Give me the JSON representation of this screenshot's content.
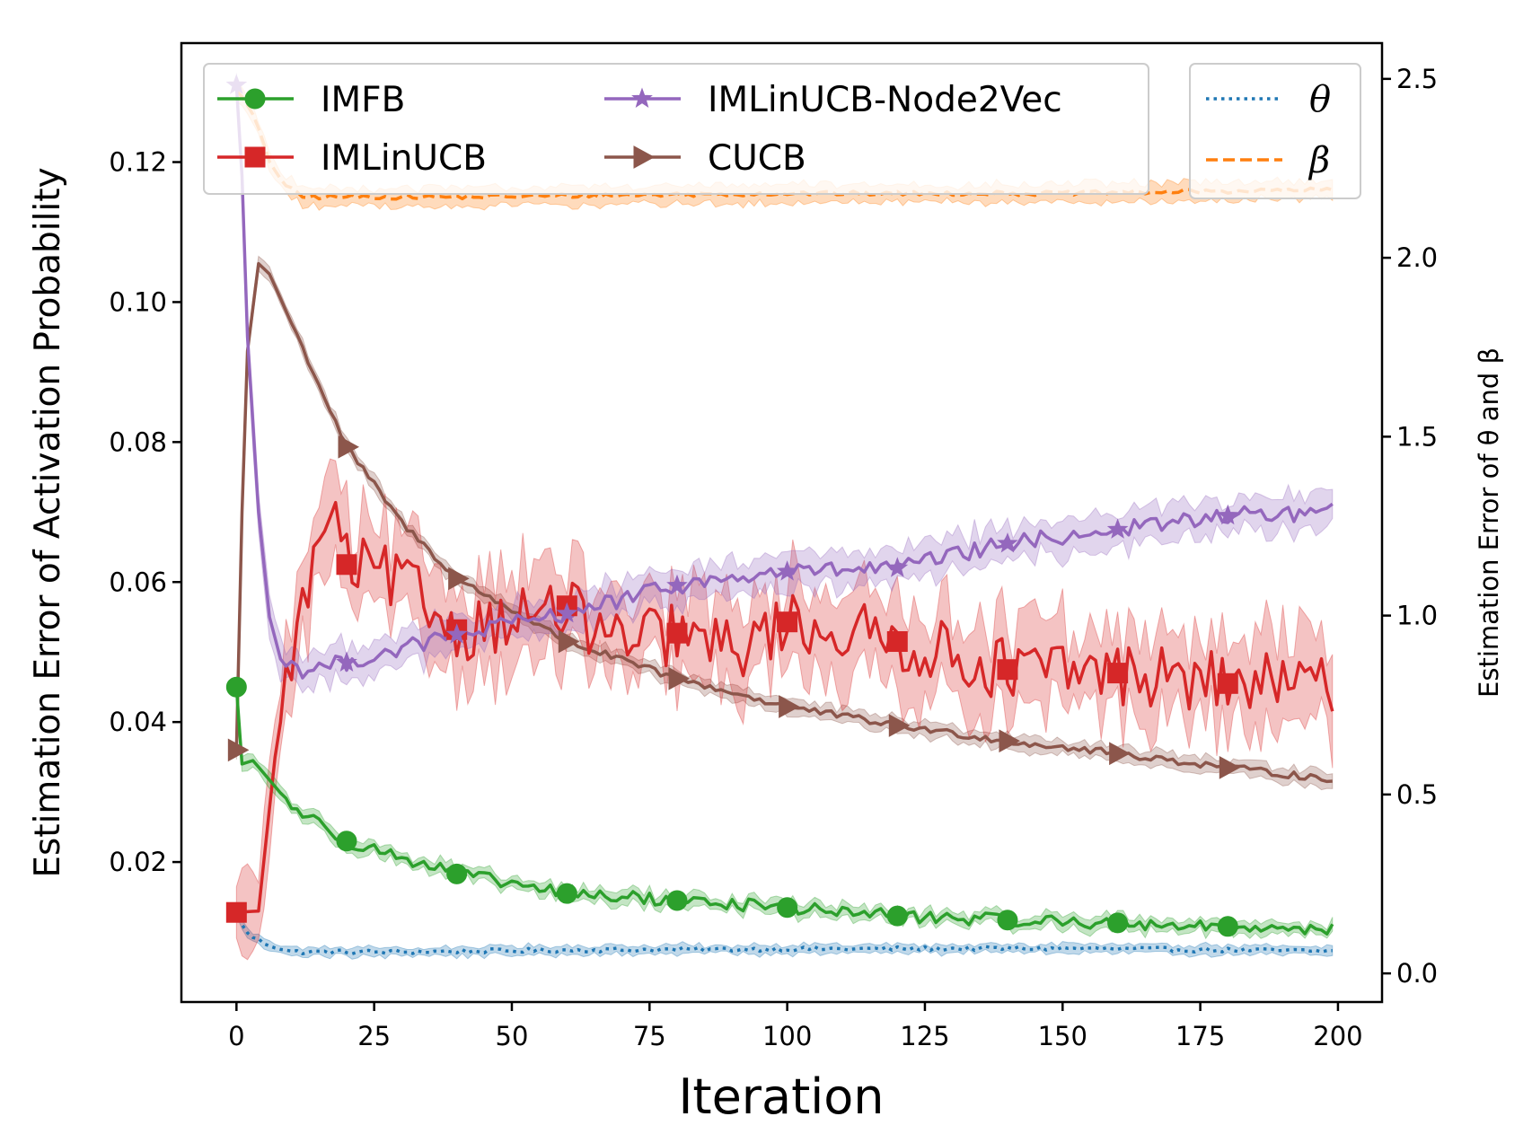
{
  "chart_data": {
    "type": "line",
    "title": "",
    "xlabel": "Iteration",
    "ylabel_left": "Estimation Error of Activation Probability",
    "ylabel_right": "Estimation Error of θ and β",
    "xlim": [
      -10,
      208
    ],
    "ylim_left": [
      0.0,
      0.137
    ],
    "ylim_right": [
      -0.08,
      2.6
    ],
    "x_ticks": [
      0,
      25,
      50,
      75,
      100,
      125,
      150,
      175,
      200
    ],
    "x_tick_labels": [
      "0",
      "25",
      "50",
      "75",
      "100",
      "125",
      "150",
      "175",
      "200"
    ],
    "y_left_ticks": [
      0.02,
      0.04,
      0.06,
      0.08,
      0.1,
      0.12
    ],
    "y_left_tick_labels": [
      "0.02",
      "0.04",
      "0.06",
      "0.08",
      "0.10",
      "0.12"
    ],
    "y_right_ticks": [
      0.0,
      0.5,
      1.0,
      1.5,
      2.0,
      2.5
    ],
    "y_right_tick_labels": [
      "0.0",
      "0.5",
      "1.0",
      "1.5",
      "2.0",
      "2.5"
    ],
    "legend_left_position": "upper-left",
    "legend_right_position": "upper-right",
    "marker_x": [
      0,
      20,
      40,
      60,
      80,
      100,
      120,
      140,
      160,
      180
    ],
    "series": [
      {
        "name": "IMFB",
        "axis": "left",
        "color": "#2ca02c",
        "style": "solid",
        "marker": "circle",
        "noise": 0.0009,
        "band": 0.0009,
        "keypoints": [
          [
            0,
            0.045
          ],
          [
            1,
            0.034
          ],
          [
            3,
            0.0345
          ],
          [
            10,
            0.028
          ],
          [
            20,
            0.023
          ],
          [
            40,
            0.0183
          ],
          [
            60,
            0.0155
          ],
          [
            80,
            0.0145
          ],
          [
            100,
            0.0135
          ],
          [
            120,
            0.0123
          ],
          [
            140,
            0.0117
          ],
          [
            160,
            0.0113
          ],
          [
            180,
            0.0108
          ],
          [
            199,
            0.0105
          ]
        ],
        "marker_values": [
          0.045,
          0.023,
          0.0183,
          0.0155,
          0.0145,
          0.0135,
          0.0123,
          0.0117,
          0.0113,
          0.0108
        ]
      },
      {
        "name": "IMLinUCB",
        "axis": "left",
        "color": "#d62728",
        "style": "solid",
        "marker": "square",
        "noise": 0.0045,
        "band": 0.006,
        "keypoints": [
          [
            0,
            0.0128
          ],
          [
            4,
            0.013
          ],
          [
            7,
            0.035
          ],
          [
            10,
            0.05
          ],
          [
            13,
            0.059
          ],
          [
            17,
            0.071
          ],
          [
            20,
            0.0625
          ],
          [
            30,
            0.06
          ],
          [
            40,
            0.053
          ],
          [
            50,
            0.055
          ],
          [
            60,
            0.056
          ],
          [
            70,
            0.051
          ],
          [
            80,
            0.0527
          ],
          [
            90,
            0.05
          ],
          [
            100,
            0.0543
          ],
          [
            120,
            0.0515
          ],
          [
            140,
            0.0475
          ],
          [
            160,
            0.047
          ],
          [
            180,
            0.0455
          ],
          [
            199,
            0.045
          ]
        ],
        "marker_values": [
          0.0128,
          0.0625,
          0.0532,
          0.0566,
          0.0527,
          0.0543,
          0.0515,
          0.0475,
          0.047,
          0.0455
        ]
      },
      {
        "name": "IMLinUCB-Node2Vec",
        "axis": "left",
        "color": "#9467bd",
        "style": "solid",
        "marker": "star",
        "noise": 0.0012,
        "band": 0.0025,
        "keypoints": [
          [
            0,
            0.131
          ],
          [
            1,
            0.118
          ],
          [
            2,
            0.095
          ],
          [
            4,
            0.07
          ],
          [
            6,
            0.055
          ],
          [
            8,
            0.049
          ],
          [
            12,
            0.0475
          ],
          [
            20,
            0.0485
          ],
          [
            40,
            0.0525
          ],
          [
            60,
            0.0555
          ],
          [
            80,
            0.0595
          ],
          [
            100,
            0.0615
          ],
          [
            120,
            0.062
          ],
          [
            140,
            0.0655
          ],
          [
            160,
            0.0675
          ],
          [
            180,
            0.0695
          ],
          [
            199,
            0.07
          ]
        ],
        "marker_values": [
          0.131,
          0.0485,
          0.0525,
          0.0555,
          0.0595,
          0.0615,
          0.062,
          0.0655,
          0.0675,
          0.0695
        ]
      },
      {
        "name": "CUCB",
        "axis": "left",
        "color": "#8c564b",
        "style": "solid",
        "marker": "triangle-right",
        "noise": 0.0005,
        "band": 0.001,
        "keypoints": [
          [
            0,
            0.036
          ],
          [
            1,
            0.07
          ],
          [
            2,
            0.093
          ],
          [
            4,
            0.1055
          ],
          [
            6,
            0.104
          ],
          [
            10,
            0.097
          ],
          [
            20,
            0.0793
          ],
          [
            30,
            0.0685
          ],
          [
            40,
            0.0605
          ],
          [
            60,
            0.0515
          ],
          [
            80,
            0.0462
          ],
          [
            100,
            0.0422
          ],
          [
            120,
            0.0395
          ],
          [
            140,
            0.0373
          ],
          [
            160,
            0.0355
          ],
          [
            180,
            0.0335
          ],
          [
            199,
            0.0318
          ]
        ],
        "marker_values": [
          0.036,
          0.0793,
          0.0605,
          0.0515,
          0.0462,
          0.0422,
          0.0395,
          0.0373,
          0.0355,
          0.0335
        ]
      },
      {
        "name": "θ",
        "axis": "right",
        "color": "#1f77b4",
        "style": "dotted",
        "marker": "none",
        "noise": 0.006,
        "band": 0.012,
        "keypoints": [
          [
            0,
            0.17
          ],
          [
            2,
            0.11
          ],
          [
            5,
            0.085
          ],
          [
            10,
            0.06
          ],
          [
            30,
            0.06
          ],
          [
            60,
            0.065
          ],
          [
            100,
            0.068
          ],
          [
            150,
            0.07
          ],
          [
            199,
            0.062
          ]
        ],
        "marker_values": []
      },
      {
        "name": "β",
        "axis": "right",
        "color": "#ff7f0e",
        "style": "dashed",
        "marker": "none",
        "noise": 0.006,
        "band": 0.025,
        "keypoints": [
          [
            0,
            2.47
          ],
          [
            3,
            2.4
          ],
          [
            6,
            2.27
          ],
          [
            9,
            2.2
          ],
          [
            12,
            2.17
          ],
          [
            40,
            2.17
          ],
          [
            100,
            2.18
          ],
          [
            150,
            2.18
          ],
          [
            199,
            2.19
          ]
        ],
        "marker_values": []
      }
    ]
  }
}
